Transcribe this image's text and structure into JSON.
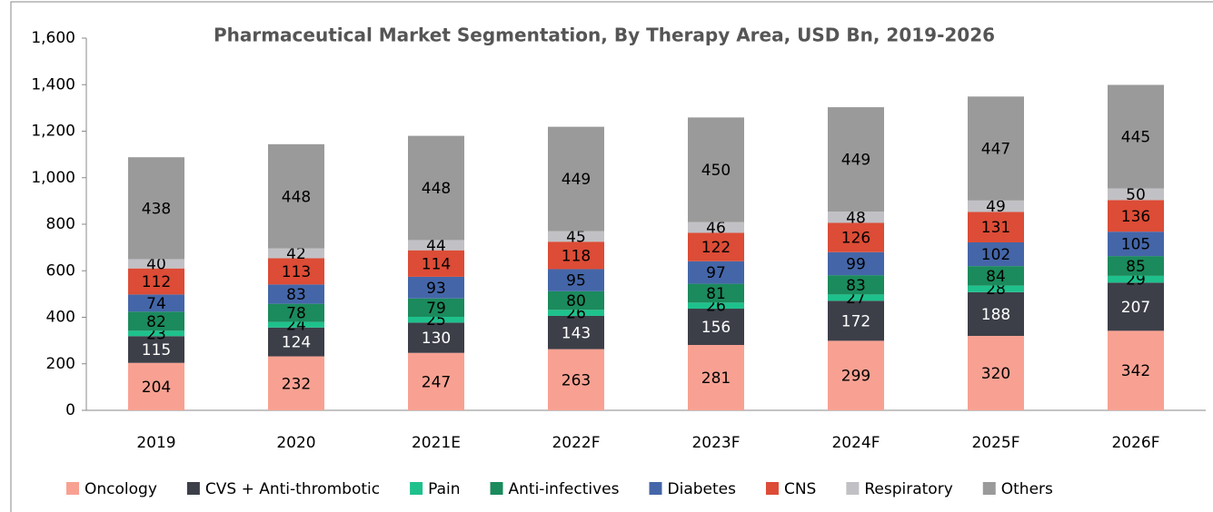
{
  "chart_data": {
    "type": "stacked_bar",
    "title": "Pharmaceutical Market Segmentation, By Therapy Area, USD  Bn, 2019-2026",
    "categories": [
      "2019",
      "2020",
      "2021E",
      "2022F",
      "2023F",
      "2024F",
      "2025F",
      "2026F"
    ],
    "series": [
      {
        "name": "Oncology",
        "color": "#f8a192",
        "values": [
          204,
          232,
          247,
          263,
          281,
          299,
          320,
          342
        ]
      },
      {
        "name": "CVS + Anti-thrombotic",
        "color": "#3c3f48",
        "values": [
          115,
          124,
          130,
          143,
          156,
          172,
          188,
          207
        ]
      },
      {
        "name": "Pain",
        "color": "#1ec18c",
        "values": [
          23,
          24,
          25,
          26,
          26,
          27,
          28,
          29
        ]
      },
      {
        "name": "Anti-infectives",
        "color": "#1b8a5c",
        "values": [
          82,
          78,
          79,
          80,
          81,
          83,
          84,
          85
        ]
      },
      {
        "name": "Diabetes",
        "color": "#4466a8",
        "values": [
          74,
          83,
          93,
          95,
          97,
          99,
          102,
          105
        ]
      },
      {
        "name": "CNS",
        "color": "#dc4c36",
        "values": [
          112,
          113,
          114,
          118,
          122,
          126,
          131,
          136
        ]
      },
      {
        "name": "Respiratory",
        "color": "#c1c1c5",
        "values": [
          40,
          42,
          44,
          45,
          46,
          48,
          49,
          50
        ]
      },
      {
        "name": "Others",
        "color": "#9a9a9a",
        "values": [
          438,
          448,
          448,
          449,
          450,
          449,
          447,
          445
        ]
      }
    ],
    "ylim": [
      0,
      1600
    ],
    "yticks": [
      0,
      200,
      400,
      600,
      800,
      {
        "value": 1000,
        "label": "1,000"
      },
      {
        "value": 1200,
        "label": "1,200"
      },
      {
        "value": 1400,
        "label": "1,400"
      },
      {
        "value": 1600,
        "label": "1,600"
      }
    ],
    "grid": false,
    "legend": "bottom"
  }
}
